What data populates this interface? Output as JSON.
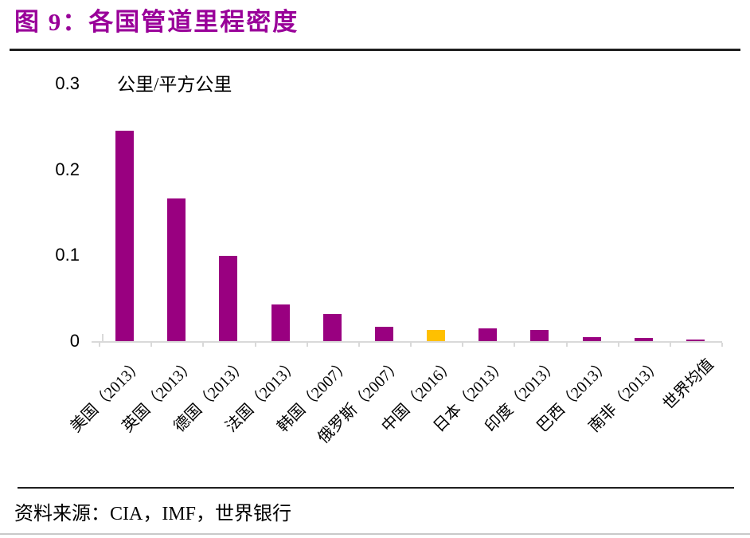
{
  "figure": {
    "title": "图 9：各国管道里程密度",
    "source": "资料来源：CIA，IMF，世界银行"
  },
  "colors": {
    "title": "#990099",
    "bar_default": "#990080",
    "bar_highlight": "#FFC000",
    "axis_line": "#D9D9D9",
    "rule_dark": "#1F1F1F"
  },
  "chart_data": {
    "type": "bar",
    "title": "各国管道里程密度",
    "ylabel": "公里/平方公里",
    "xlabel": "",
    "categories": [
      "美国（2013）",
      "英国（2013）",
      "德国（2013）",
      "法国（2013）",
      "韩国（2007）",
      "俄罗斯（2007）",
      "中国（2016）",
      "日本（2013）",
      "印度（2013）",
      "巴西（2013）",
      "南非（2013）",
      "世界均值"
    ],
    "values": [
      0.245,
      0.166,
      0.099,
      0.043,
      0.032,
      0.017,
      0.013,
      0.015,
      0.013,
      0.005,
      0.004,
      0.002
    ],
    "highlight": {
      "index": 6,
      "color": "#FFC000"
    },
    "bar_color": "#990080",
    "ylim": [
      0,
      0.3
    ],
    "yticks": [
      {
        "label": "0",
        "value": 0
      },
      {
        "label": "0.1",
        "value": 0.1
      },
      {
        "label": "0.2",
        "value": 0.2
      },
      {
        "label": "0.3",
        "value": 0.3
      }
    ],
    "grid": false,
    "legend": "none",
    "x_label_rotation_deg": -45
  }
}
